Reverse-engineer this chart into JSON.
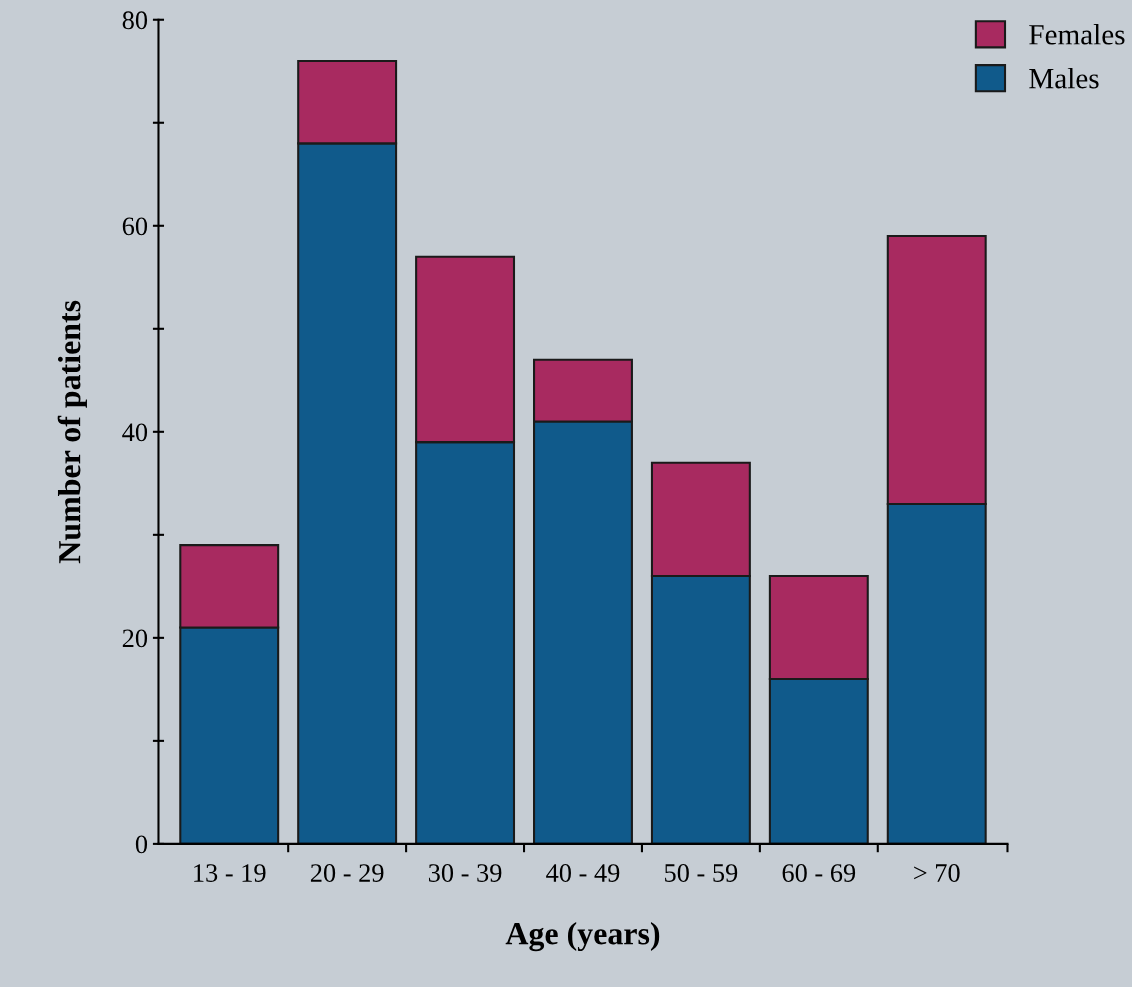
{
  "chart_data": {
    "type": "bar",
    "stacked": true,
    "xlabel": "Age (years)",
    "ylabel": "Number of patients",
    "categories": [
      "13 - 19",
      "20 - 29",
      "30 - 39",
      "40 - 49",
      "50 - 59",
      "60 - 69",
      "> 70"
    ],
    "series": [
      {
        "name": "Males",
        "color": "#105a8b",
        "values": [
          21,
          68,
          39,
          41,
          26,
          16,
          33
        ]
      },
      {
        "name": "Females",
        "color": "#a82a60",
        "values": [
          8,
          8,
          18,
          6,
          11,
          10,
          26
        ]
      }
    ],
    "ylim": [
      0,
      80
    ],
    "yticks": [
      0,
      {
        "value": 10,
        "label": null
      },
      20,
      {
        "value": 30,
        "label": null
      },
      40,
      {
        "value": 50,
        "label": null
      },
      60,
      {
        "value": 70,
        "label": null
      },
      80
    ],
    "grid": false,
    "legend": "top right"
  }
}
